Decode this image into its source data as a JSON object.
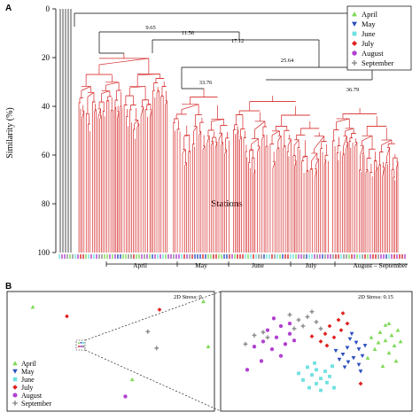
{
  "chart_data": [
    {
      "panel": "A",
      "type": "dendrogram",
      "xlabel": "Stations",
      "ylabel": "Similarity (%)",
      "ylim": [
        0,
        100
      ],
      "yticks": [
        0,
        20,
        40,
        60,
        80,
        100
      ],
      "node_labels": [
        "9.65",
        "11.56",
        "17.12",
        "25.64",
        "33.76",
        "36.79"
      ],
      "month_groups": [
        "April",
        "May",
        "June",
        "July",
        "August",
        "September"
      ],
      "legend": {
        "placement": "top-right"
      },
      "branch_color": "#d62728",
      "base_color": "#000000"
    },
    {
      "panel": "B",
      "type": "scatter",
      "subtitle_left": "2D Stress: 0",
      "subtitle_right": "2D Stress: 0.15",
      "legend": {
        "placement": "bottom-left"
      },
      "series": [
        {
          "name": "April",
          "color": "#7ed957",
          "marker": "triangle-up"
        },
        {
          "name": "May",
          "color": "#2b4fbf",
          "marker": "triangle-down"
        },
        {
          "name": "June",
          "color": "#6fe0e0",
          "marker": "square"
        },
        {
          "name": "July",
          "color": "#e02020",
          "marker": "diamond"
        },
        {
          "name": "August",
          "color": "#b040d0",
          "marker": "circle"
        },
        {
          "name": "September",
          "color": "#888888",
          "marker": "cross"
        }
      ],
      "overview_points": [
        {
          "series": 0,
          "x": -0.8,
          "y": 0.8
        },
        {
          "series": 3,
          "x": -0.45,
          "y": 0.63
        },
        {
          "series": 3,
          "x": 0.5,
          "y": 0.75
        },
        {
          "series": 0,
          "x": 0.95,
          "y": 0.9
        },
        {
          "series": 0,
          "x": 1.0,
          "y": 0.08
        },
        {
          "series": 5,
          "x": 0.38,
          "y": 0.35
        },
        {
          "series": 5,
          "x": 0.47,
          "y": 0.05
        },
        {
          "series": 0,
          "x": 0.22,
          "y": -0.52
        },
        {
          "series": 4,
          "x": 0.15,
          "y": -0.83
        }
      ],
      "detail_points": [
        {
          "series": 0,
          "x": 0.78,
          "y": 0.52
        },
        {
          "series": 0,
          "x": 0.82,
          "y": 0.55
        },
        {
          "series": 0,
          "x": 0.72,
          "y": 0.38
        },
        {
          "series": 0,
          "x": 0.85,
          "y": 0.32
        },
        {
          "series": 0,
          "x": 0.78,
          "y": 0.22
        },
        {
          "series": 0,
          "x": 0.88,
          "y": 0.12
        },
        {
          "series": 0,
          "x": 0.7,
          "y": 0.18
        },
        {
          "series": 0,
          "x": 0.62,
          "y": 0.28
        },
        {
          "series": 0,
          "x": 0.92,
          "y": 0.42
        },
        {
          "series": 0,
          "x": 0.66,
          "y": 0.05
        },
        {
          "series": 0,
          "x": 0.82,
          "y": -0.02
        },
        {
          "series": 0,
          "x": 0.95,
          "y": 0.2
        },
        {
          "series": 0,
          "x": 0.58,
          "y": -0.12
        },
        {
          "series": 0,
          "x": 0.75,
          "y": -0.28
        },
        {
          "series": 0,
          "x": 0.9,
          "y": -0.18
        },
        {
          "series": 1,
          "x": 0.38,
          "y": 0.25
        },
        {
          "series": 1,
          "x": 0.45,
          "y": 0.18
        },
        {
          "series": 1,
          "x": 0.35,
          "y": 0.08
        },
        {
          "series": 1,
          "x": 0.48,
          "y": 0.05
        },
        {
          "series": 1,
          "x": 0.3,
          "y": -0.05
        },
        {
          "series": 1,
          "x": 0.42,
          "y": -0.12
        },
        {
          "series": 1,
          "x": 0.52,
          "y": -0.08
        },
        {
          "series": 1,
          "x": 0.36,
          "y": -0.2
        },
        {
          "series": 1,
          "x": 0.48,
          "y": -0.25
        },
        {
          "series": 1,
          "x": 0.26,
          "y": -0.15
        },
        {
          "series": 1,
          "x": 0.55,
          "y": 0.12
        },
        {
          "series": 1,
          "x": 0.4,
          "y": 0.35
        },
        {
          "series": 1,
          "x": 0.32,
          "y": -0.3
        },
        {
          "series": 1,
          "x": 0.5,
          "y": -0.38
        },
        {
          "series": 1,
          "x": 0.22,
          "y": 0.02
        },
        {
          "series": 2,
          "x": -0.1,
          "y": -0.3
        },
        {
          "series": 2,
          "x": 0.0,
          "y": -0.35
        },
        {
          "series": 2,
          "x": 0.1,
          "y": -0.38
        },
        {
          "series": 2,
          "x": -0.05,
          "y": -0.45
        },
        {
          "series": 2,
          "x": 0.05,
          "y": -0.52
        },
        {
          "series": 2,
          "x": 0.15,
          "y": -0.48
        },
        {
          "series": 2,
          "x": -0.15,
          "y": -0.55
        },
        {
          "series": 2,
          "x": 0.0,
          "y": -0.62
        },
        {
          "series": 2,
          "x": 0.12,
          "y": -0.6
        },
        {
          "series": 2,
          "x": -0.08,
          "y": -0.7
        },
        {
          "series": 2,
          "x": 0.05,
          "y": -0.75
        },
        {
          "series": 2,
          "x": 0.18,
          "y": -0.28
        },
        {
          "series": 2,
          "x": -0.2,
          "y": -0.42
        },
        {
          "series": 2,
          "x": 0.2,
          "y": -0.7
        },
        {
          "series": 2,
          "x": -0.02,
          "y": -0.22
        },
        {
          "series": 3,
          "x": 0.15,
          "y": 0.5
        },
        {
          "series": 3,
          "x": 0.25,
          "y": 0.62
        },
        {
          "series": 3,
          "x": 0.1,
          "y": 0.35
        },
        {
          "series": 3,
          "x": 0.2,
          "y": 0.28
        },
        {
          "series": 3,
          "x": 0.05,
          "y": 0.2
        },
        {
          "series": 3,
          "x": -0.05,
          "y": 0.3
        },
        {
          "series": 3,
          "x": 0.28,
          "y": 0.42
        },
        {
          "series": 3,
          "x": 0.35,
          "y": 0.55
        },
        {
          "series": 3,
          "x": 0.5,
          "y": -0.62
        },
        {
          "series": 3,
          "x": 0.12,
          "y": 0.12
        },
        {
          "series": 3,
          "x": 0.3,
          "y": 0.75
        },
        {
          "series": 4,
          "x": -0.4,
          "y": 0.5
        },
        {
          "series": 4,
          "x": -0.55,
          "y": 0.42
        },
        {
          "series": 4,
          "x": -0.3,
          "y": 0.35
        },
        {
          "series": 4,
          "x": -0.45,
          "y": 0.28
        },
        {
          "series": 4,
          "x": -0.6,
          "y": 0.2
        },
        {
          "series": 4,
          "x": -0.35,
          "y": 0.15
        },
        {
          "series": 4,
          "x": -0.5,
          "y": 0.05
        },
        {
          "series": 4,
          "x": -0.7,
          "y": 0.1
        },
        {
          "series": 4,
          "x": -0.25,
          "y": 0.22
        },
        {
          "series": 4,
          "x": -0.4,
          "y": -0.08
        },
        {
          "series": 4,
          "x": -0.62,
          "y": -0.18
        },
        {
          "series": 4,
          "x": -0.3,
          "y": 0.55
        },
        {
          "series": 4,
          "x": -0.48,
          "y": 0.65
        },
        {
          "series": 4,
          "x": -0.78,
          "y": -0.35
        },
        {
          "series": 5,
          "x": -0.1,
          "y": 0.68
        },
        {
          "series": 5,
          "x": -0.2,
          "y": 0.62
        },
        {
          "series": 5,
          "x": -0.3,
          "y": 0.72
        },
        {
          "series": 5,
          "x": 0.0,
          "y": 0.58
        },
        {
          "series": 5,
          "x": -0.15,
          "y": 0.5
        },
        {
          "series": 5,
          "x": -0.25,
          "y": 0.45
        },
        {
          "series": 5,
          "x": 0.05,
          "y": 0.45
        },
        {
          "series": 5,
          "x": -0.05,
          "y": 0.78
        },
        {
          "series": 5,
          "x": -0.6,
          "y": 0.38
        },
        {
          "series": 5,
          "x": -0.7,
          "y": 0.32
        },
        {
          "series": 5,
          "x": -0.8,
          "y": 0.15
        },
        {
          "series": 5,
          "x": -0.55,
          "y": 0.28
        }
      ]
    }
  ]
}
